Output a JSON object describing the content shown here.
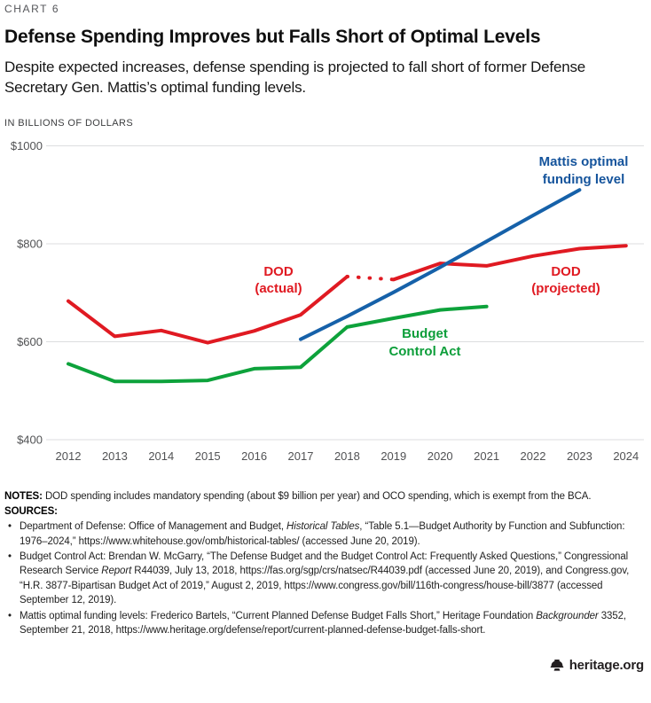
{
  "header": {
    "kicker": "CHART 6",
    "title": "Defense Spending Improves but Falls Short of Optimal Levels",
    "subtitle": "Despite expected increases, defense spending is projected to fall short of former Defense Secretary Gen. Mattis’s optimal funding levels."
  },
  "chart_data": {
    "type": "line",
    "title": "Defense Spending Improves but Falls Short of Optimal Levels",
    "unit_label": "IN BILLIONS OF DOLLARS",
    "ylim": [
      400,
      1000
    ],
    "grid": true,
    "grid_color": "#dcdddf",
    "tick_color": "#515254",
    "yticks": [
      {
        "label": "$1000",
        "value": 1000
      },
      {
        "label": "$800",
        "value": 800
      },
      {
        "label": "$600",
        "value": 600
      },
      {
        "label": "$400",
        "value": 400
      }
    ],
    "xticks": [
      2012,
      2013,
      2014,
      2015,
      2016,
      2017,
      2018,
      2019,
      2020,
      2021,
      2022,
      2023,
      2024
    ],
    "series": [
      {
        "name": "DOD (actual)",
        "color": "#e01a22",
        "style": "solid",
        "x": [
          2012,
          2013,
          2014,
          2015,
          2016,
          2017,
          2018
        ],
        "values": [
          683,
          611,
          623,
          598,
          622,
          655,
          733
        ]
      },
      {
        "name": "DOD actual-to-projected gap",
        "color": "#e01a22",
        "style": "dotted",
        "x": [
          2018,
          2019
        ],
        "values": [
          733,
          727
        ]
      },
      {
        "name": "DOD (projected)",
        "color": "#e01a22",
        "style": "solid",
        "x": [
          2019,
          2020,
          2021,
          2022,
          2023,
          2024
        ],
        "values": [
          727,
          760,
          755,
          775,
          790,
          796
        ]
      },
      {
        "name": "Mattis optimal funding level",
        "color": "#1661a9",
        "style": "solid",
        "x": [
          2017,
          2018,
          2019,
          2020,
          2021,
          2022,
          2023
        ],
        "values": [
          605,
          652,
          701,
          752,
          805,
          858,
          910
        ]
      },
      {
        "name": "Budget Control Act",
        "color": "#0da23b",
        "style": "solid",
        "x": [
          2012,
          2013,
          2014,
          2015,
          2016,
          2017,
          2018,
          2019,
          2020,
          2021
        ],
        "values": [
          555,
          519,
          519,
          521,
          545,
          548,
          630,
          648,
          665,
          672
        ]
      }
    ],
    "labels": {
      "dod_actual": [
        "DOD",
        "(actual)"
      ],
      "dod_projected": [
        "DOD",
        "(projected)"
      ],
      "mattis": [
        "Mattis optimal",
        "funding level"
      ],
      "bca": [
        "Budget",
        "Control Act"
      ]
    },
    "label_colors": {
      "red": "#e01a22",
      "green": "#0d9e3a",
      "blue": "#15549c"
    },
    "legend_position": "inline-annotations"
  },
  "footer": {
    "bullet_glyph": "•",
    "notes_label": "NOTES:",
    "notes_text": "DOD spending includes mandatory spending (about $9 billion per year) and OCO spending, which is exempt from the BCA.",
    "sources_label": "SOURCES:",
    "sources": [
      {
        "pre": "Department of Defense: Office of Management and Budget, ",
        "italic": "Historical Tables",
        "post": ", “Table 5.1—Budget Authority by Function and Subfunction: 1976–2024,” https://www.whitehouse.gov/omb/historical-tables/ (accessed June 20, 2019)."
      },
      {
        "pre": "Budget Control Act: Brendan W. McGarry, “The Defense Budget and the Budget Control Act: Frequently Asked Questions,” Congressional Research Service ",
        "italic": "Report",
        "post": " R44039, July 13, 2018, https://fas.org/sgp/crs/natsec/R44039.pdf (accessed June 20, 2019), and Congress.gov, “H.R. 3877-Bipartisan Budget Act of 2019,” August 2, 2019, https://www.congress.gov/bill/116th-congress/house-bill/3877 (accessed September 12, 2019)."
      },
      {
        "pre": "Mattis optimal funding levels: Frederico Bartels, “Current Planned Defense Budget Falls Short,” Heritage Foundation ",
        "italic": "Backgrounder",
        "post": " 3352, September 21, 2018, https://www.heritage.org/defense/report/current-planned-defense-budget-falls-short."
      }
    ]
  },
  "branding": {
    "site": "heritage.org"
  }
}
